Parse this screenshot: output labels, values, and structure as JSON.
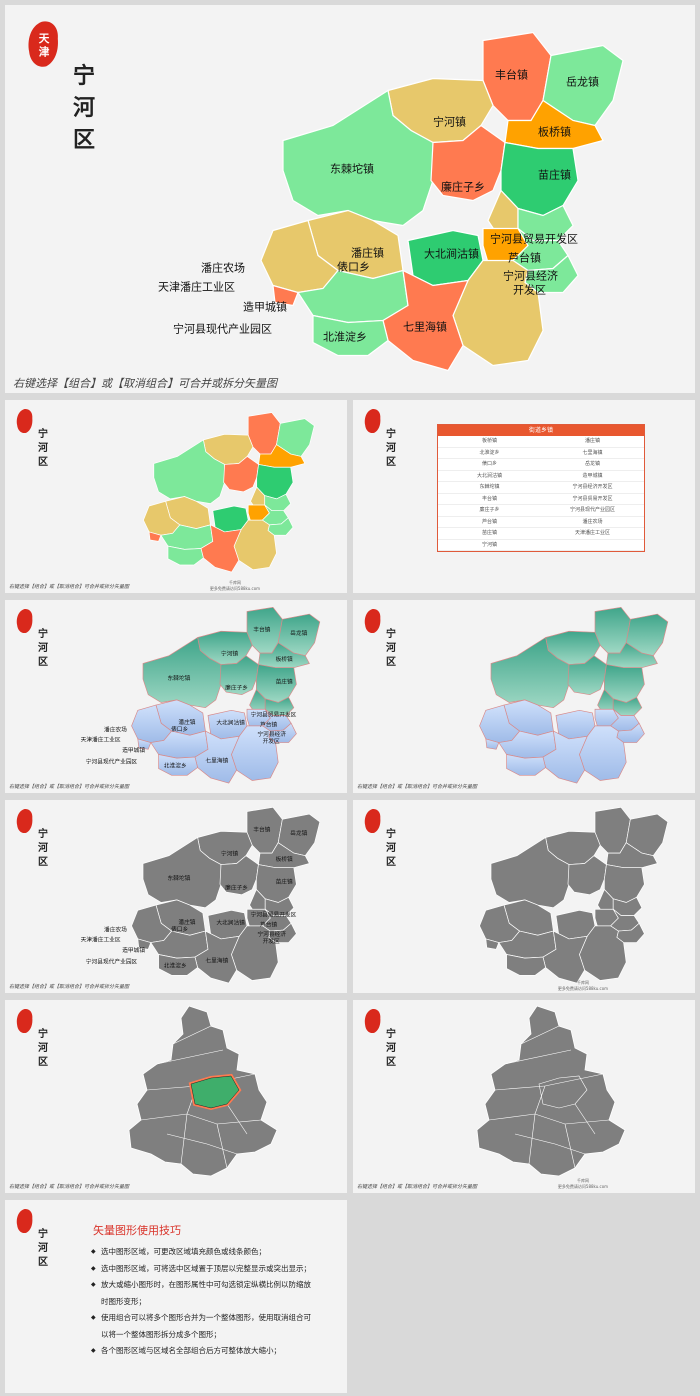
{
  "seal_text": "天津",
  "district_title": [
    "宁",
    "河",
    "区"
  ],
  "hint": "右键选择【组合】或【取消组合】可合并或拆分矢量图",
  "site": "千库网",
  "site_url": "更多免费请访问588ku.com",
  "towns": {
    "fengtai": "丰台镇",
    "yuelong": "岳龙镇",
    "ninghe": "宁河镇",
    "banqiao": "板桥镇",
    "dongjituo": "东棘坨镇",
    "lianzhuangzi": "廉庄子乡",
    "miaozhuang": "苗庄镇",
    "trade_zone": "宁河县贸易开发区",
    "panzhuang": "潘庄镇",
    "panzhuang_farm": "潘庄农场",
    "qikou": "俵口乡",
    "dabeijiangu": "大北涧沽镇",
    "lutai": "芦台镇",
    "econ_zone_1": "宁河县经济",
    "econ_zone_2": "开发区",
    "panzhuang_industrial": "天津潘庄工业区",
    "zaojiacheng": "造甲城镇",
    "qilihai": "七里海镇",
    "beihuaidian": "北淮淀乡",
    "modern_industry": "宁河县现代产业园区"
  },
  "table": {
    "header": "街道乡镇",
    "rows": [
      [
        "板桥镇",
        "潘庄镇"
      ],
      [
        "北淮淀乡",
        "七里海镇"
      ],
      [
        "俵口乡",
        "岳龙镇"
      ],
      [
        "大北涧沽镇",
        "造甲城镇"
      ],
      [
        "东棘坨镇",
        "宁河县经济开发区"
      ],
      [
        "丰台镇",
        "宁河县贸易开发区"
      ],
      [
        "廉庄子乡",
        "宁河县现代产业园区"
      ],
      [
        "芦台镇",
        "潘庄农场"
      ],
      [
        "苗庄镇",
        "天津潘庄工业区"
      ],
      [
        "宁河镇",
        ""
      ]
    ]
  },
  "tips": {
    "title": "矢量图形使用技巧",
    "items": [
      "选中图形区域，可更改区域填充颜色或线条颜色；",
      "选中图形区域，可将选中区域置于顶层以完整显示或突出显示；",
      "放大或缩小图形时，在图形属性中可勾选锁定纵横比例以防缩放时图形变形；",
      "使用组合可以将多个图形合并为一个整体图形，使用取消组合可以将一个整体图形拆分成多个图形；",
      "各个图形区域与区域名全部组合后方可整体放大缩小；"
    ]
  },
  "colors": {
    "green": "#7de89a",
    "dark_green": "#2ecc71",
    "yellow": "#e7c86b",
    "orange": "#ff7a50",
    "amber": "#ffa200",
    "teal": "#5fb39a",
    "blue": "#b6cdf0",
    "gray": "#7f7f7f",
    "red": "#d9332a"
  }
}
